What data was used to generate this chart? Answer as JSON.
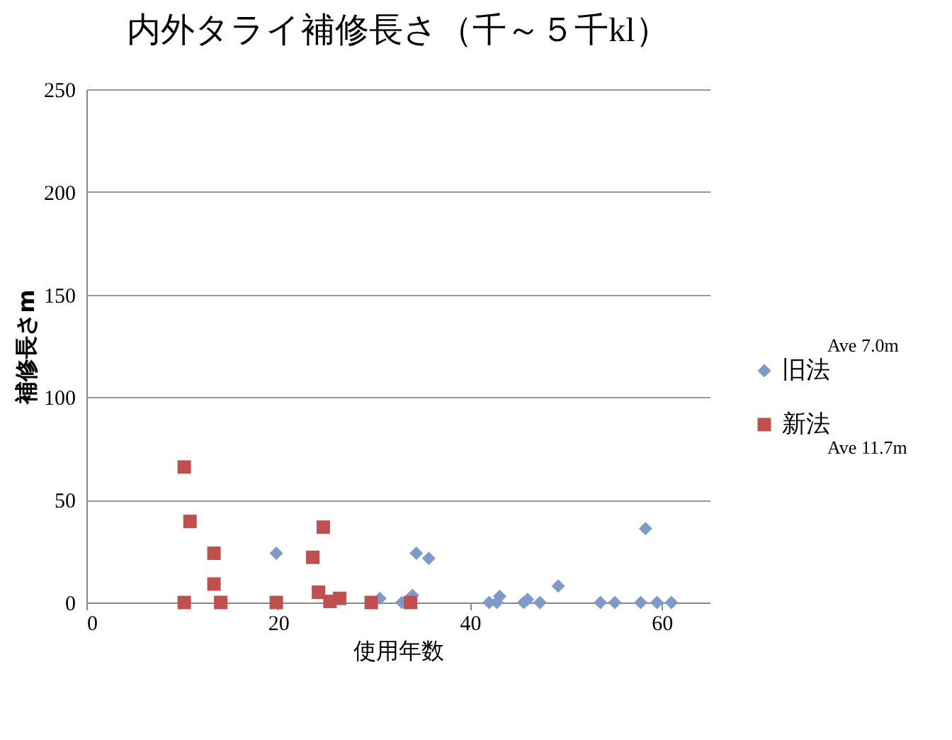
{
  "chart_data": {
    "type": "scatter",
    "title": "内外タライ補修長さ（千～５千kl）",
    "xlabel": "使用年数",
    "ylabel": "補修長さm",
    "xlim": [
      0,
      65
    ],
    "xticks": [
      0,
      20,
      40,
      60
    ],
    "ylim": [
      0,
      250
    ],
    "yticks": [
      0,
      50,
      100,
      150,
      200,
      250
    ],
    "grid": "y",
    "legend": "right",
    "annotations": [
      "Ave 7.0m",
      "Ave 11.7m"
    ],
    "series": [
      {
        "name": "旧法",
        "color": "#7d9bc9",
        "marker": "diamond",
        "x": [
          19.8,
          30.6,
          32.9,
          34,
          34.4,
          35.7,
          42,
          42.8,
          43.1,
          45.6,
          46,
          47.3,
          49.2,
          53.6,
          55.1,
          57.8,
          58.3,
          59.5,
          61
        ],
        "values": [
          24,
          2,
          0,
          3.5,
          24,
          21.5,
          0,
          0,
          3,
          0,
          1.5,
          0,
          8,
          0,
          0,
          0,
          36,
          0,
          0
        ]
      },
      {
        "name": "新法",
        "color": "#c0504d",
        "marker": "square",
        "x": [
          10.2,
          10.8,
          13.3,
          13.3,
          10.2,
          14,
          19.8,
          24.7,
          23.6,
          24.2,
          25.4,
          26.4,
          29.7,
          33.8
        ],
        "values": [
          66,
          39.5,
          24,
          9,
          0,
          0,
          0,
          36.7,
          22,
          5,
          0.5,
          2,
          0,
          0
        ]
      }
    ]
  }
}
